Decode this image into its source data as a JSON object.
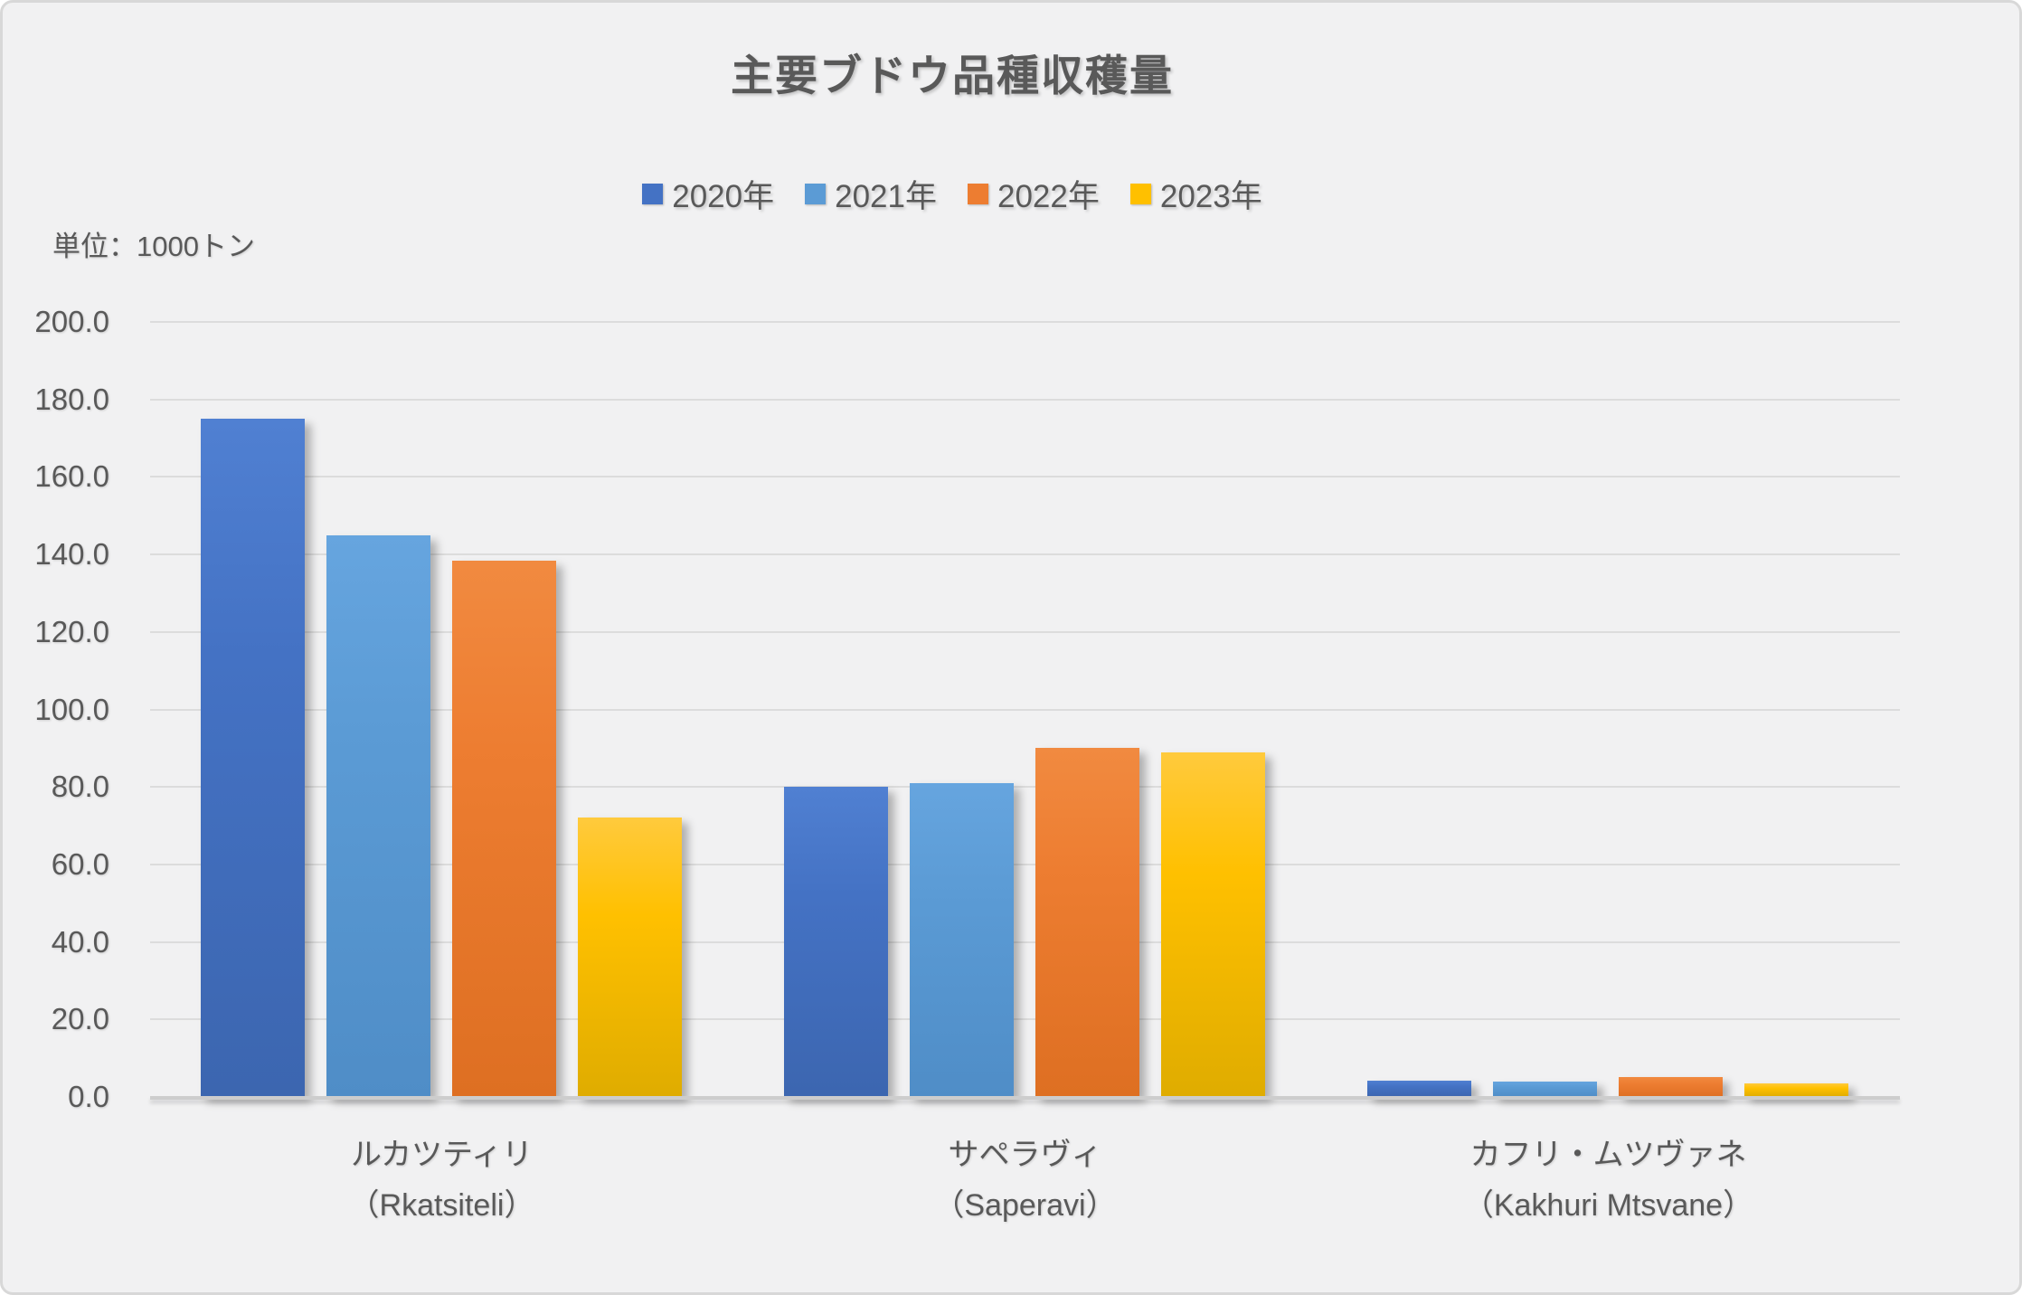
{
  "chart_data": {
    "type": "bar",
    "title": "主要ブドウ品種収穫量",
    "unit_label": "単位：1000トン",
    "legend_position": "top-center",
    "grid": true,
    "background_color": "#f1f1f2",
    "text_color": "#595959",
    "categories": [
      {
        "jp": "ルカツティリ",
        "en": "（Rkatsiteli）"
      },
      {
        "jp": "サペラヴィ",
        "en": "（Saperavi）"
      },
      {
        "jp": "カフリ・ムツヴァネ",
        "en": "（Kakhuri Mtsvane）"
      }
    ],
    "series": [
      {
        "name": "2020年",
        "color": "#4472C4",
        "color_top": "#5080D2",
        "color_bottom": "#3C66B0",
        "values": [
          175.0,
          80.0,
          4.3
        ]
      },
      {
        "name": "2021年",
        "color": "#5B9BD5",
        "color_top": "#66A5DF",
        "color_bottom": "#4F8DC7",
        "values": [
          145.0,
          81.0,
          4.0
        ]
      },
      {
        "name": "2022年",
        "color": "#ED7D31",
        "color_top": "#F18A40",
        "color_bottom": "#DE6F22",
        "values": [
          138.5,
          90.0,
          5.1
        ]
      },
      {
        "name": "2023年",
        "color": "#FFC000",
        "color_top": "#FFCA3D",
        "color_bottom": "#DFAC00",
        "values": [
          72.0,
          89.0,
          3.4
        ]
      }
    ],
    "y_axis": {
      "min": 0,
      "max": 200,
      "step": 20,
      "tick_labels": [
        "200.0",
        "180.0",
        "160.0",
        "140.0",
        "120.0",
        "100.0",
        "80.0",
        "60.0",
        "40.0",
        "20.0",
        "0.0"
      ]
    }
  }
}
